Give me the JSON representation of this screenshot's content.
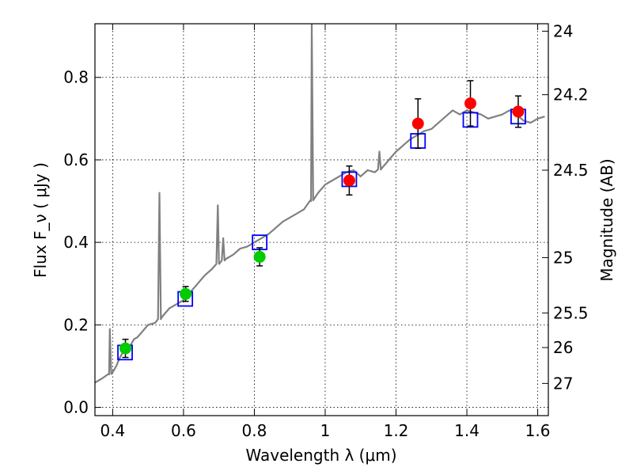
{
  "chart_data": {
    "type": "scatter",
    "xlabel": "Wavelength  λ (μm)",
    "ylabel": "Flux  F_ν ( μJy )",
    "y2label": "Magnitude (AB)",
    "xlim": [
      0.35,
      1.63
    ],
    "ylim": [
      -0.02,
      0.93
    ],
    "grid": true,
    "x_ticks": [
      0.4,
      0.6,
      0.8,
      1.0,
      1.2,
      1.4,
      1.6
    ],
    "x_tick_labels": [
      "0.4",
      "0.6",
      "0.8",
      "1",
      "1.2",
      "1.4",
      "1.6"
    ],
    "y_ticks": [
      0.0,
      0.2,
      0.4,
      0.6,
      0.8
    ],
    "y_tick_labels": [
      "0.0",
      "0.2",
      "0.4",
      "0.6",
      "0.8"
    ],
    "y2_ticks": [
      {
        "label": "24",
        "flux": 0.912
      },
      {
        "label": "24.2",
        "flux": 0.758
      },
      {
        "label": "24.5",
        "flux": 0.575
      },
      {
        "label": "25",
        "flux": 0.363
      },
      {
        "label": "25.5",
        "flux": 0.229
      },
      {
        "label": "26",
        "flux": 0.145
      },
      {
        "label": "27",
        "flux": 0.058
      }
    ],
    "series": [
      {
        "kind": "line",
        "color": "#808080",
        "x": [
          0.35,
          0.37,
          0.39,
          0.4,
          0.41,
          0.42,
          0.43,
          0.44,
          0.45,
          0.46,
          0.47,
          0.48,
          0.5,
          0.52,
          0.54,
          0.56,
          0.58,
          0.6,
          0.62,
          0.64,
          0.66,
          0.68,
          0.7,
          0.72,
          0.74,
          0.76,
          0.78,
          0.8,
          0.82,
          0.84,
          0.86,
          0.88,
          0.9,
          0.92,
          0.94,
          0.96,
          0.98,
          1.0,
          1.02,
          1.04,
          1.06,
          1.08,
          1.1,
          1.12,
          1.14,
          1.16,
          1.18,
          1.2,
          1.22,
          1.24,
          1.26,
          1.28,
          1.3,
          1.32,
          1.34,
          1.36,
          1.38,
          1.4,
          1.42,
          1.44,
          1.46,
          1.48,
          1.5,
          1.52,
          1.54,
          1.56,
          1.58,
          1.6,
          1.62
        ],
        "y": [
          0.06,
          0.07,
          0.08,
          0.085,
          0.1,
          0.12,
          0.135,
          0.14,
          0.15,
          0.165,
          0.17,
          0.18,
          0.2,
          0.205,
          0.22,
          0.24,
          0.25,
          0.26,
          0.28,
          0.3,
          0.32,
          0.335,
          0.35,
          0.36,
          0.37,
          0.385,
          0.39,
          0.4,
          0.41,
          0.42,
          0.435,
          0.45,
          0.46,
          0.47,
          0.48,
          0.5,
          0.52,
          0.54,
          0.55,
          0.56,
          0.57,
          0.575,
          0.56,
          0.575,
          0.57,
          0.58,
          0.6,
          0.62,
          0.635,
          0.65,
          0.66,
          0.67,
          0.675,
          0.69,
          0.705,
          0.72,
          0.71,
          0.72,
          0.715,
          0.71,
          0.7,
          0.705,
          0.71,
          0.72,
          0.71,
          0.695,
          0.69,
          0.7,
          0.705
        ],
        "lines": [
          {
            "x": 0.392,
            "peak": 0.19
          },
          {
            "x": 0.532,
            "peak": 0.52
          },
          {
            "x": 0.697,
            "peak": 0.49
          },
          {
            "x": 0.712,
            "peak": 0.41
          },
          {
            "x": 0.962,
            "peak": 0.93
          },
          {
            "x": 1.153,
            "peak": 0.62
          }
        ]
      },
      {
        "kind": "open-square",
        "color": "#0000ff",
        "x": [
          0.435,
          0.605,
          0.815,
          1.068,
          1.262,
          1.41,
          1.545
        ],
        "y": [
          0.133,
          0.263,
          0.4,
          0.553,
          0.646,
          0.697,
          0.705
        ]
      },
      {
        "kind": "filled-circle",
        "color": "#00cc00",
        "x": [
          0.436,
          0.606,
          0.815
        ],
        "y": [
          0.143,
          0.275,
          0.365
        ],
        "err": [
          0.022,
          0.018,
          0.022
        ]
      },
      {
        "kind": "filled-circle",
        "color": "#ff0000",
        "x": [
          1.068,
          1.262,
          1.41,
          1.545
        ],
        "y": [
          0.55,
          0.688,
          0.737,
          0.717
        ],
        "err": [
          0.035,
          0.06,
          0.055,
          0.038
        ]
      }
    ]
  }
}
